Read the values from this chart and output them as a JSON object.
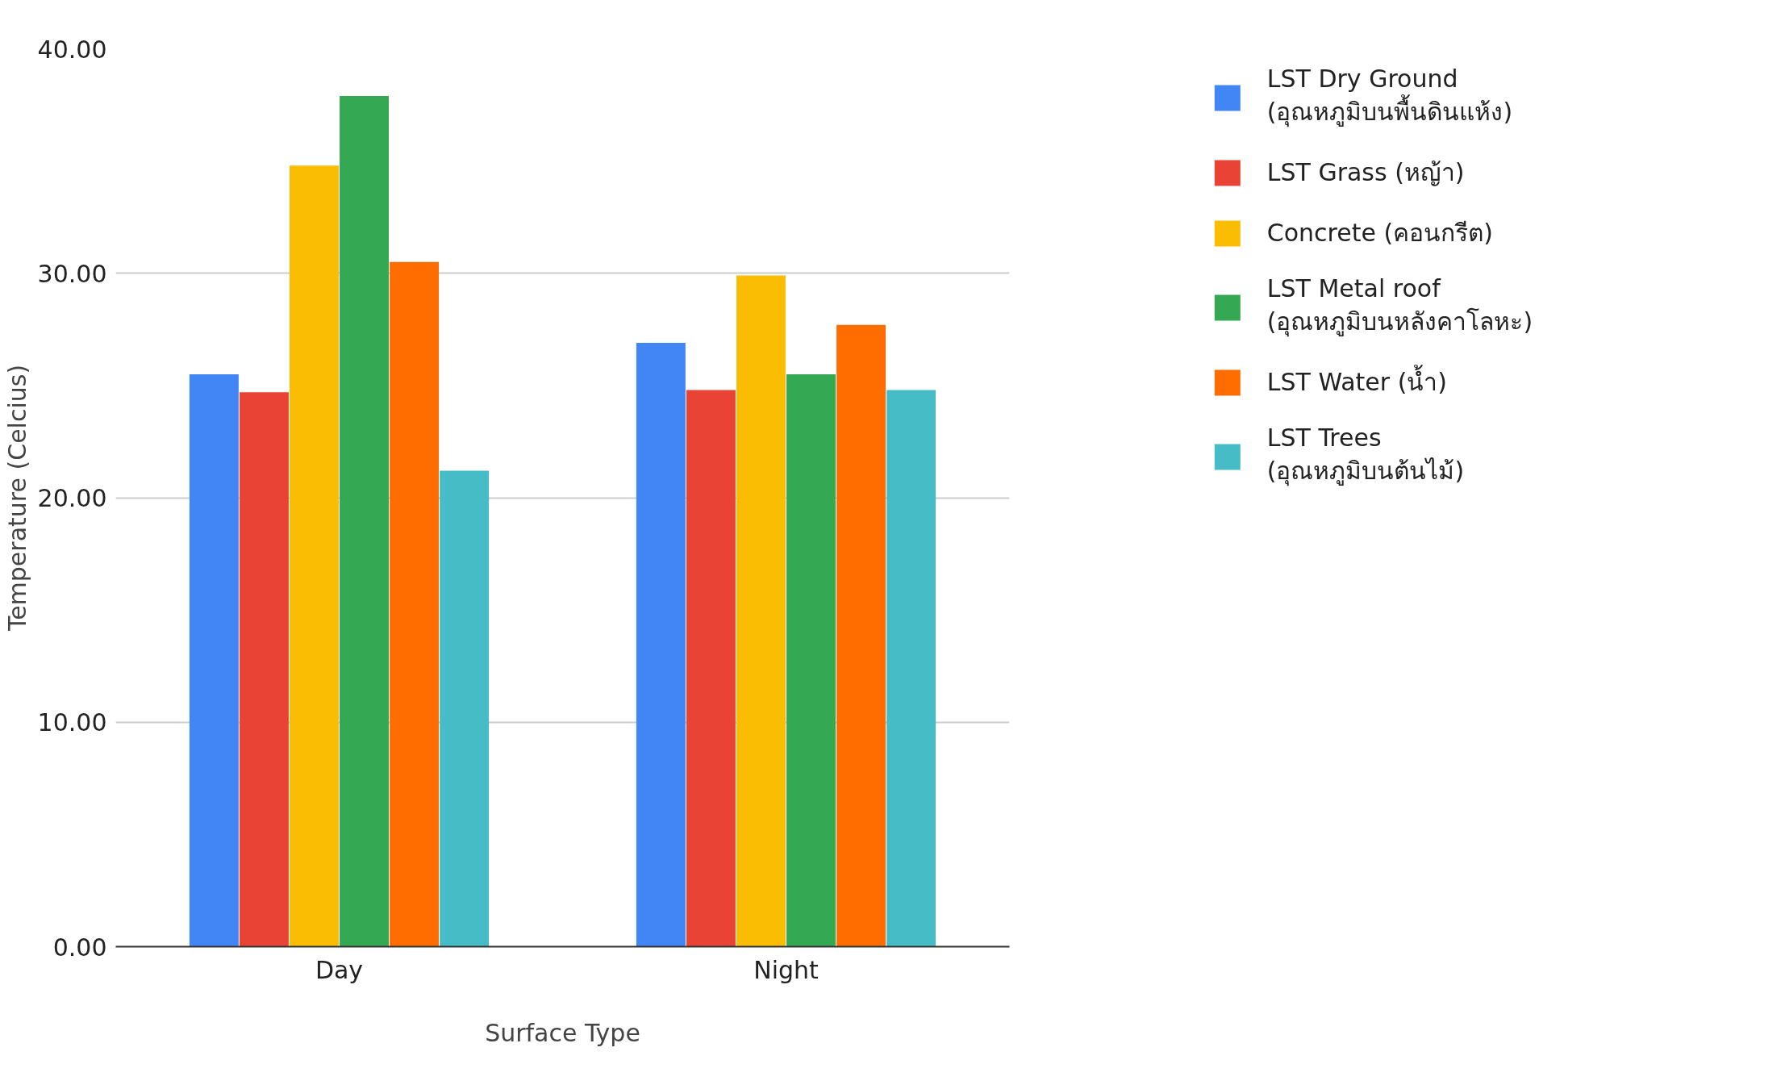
{
  "chart_data": {
    "type": "bar",
    "xlabel": "Surface Type",
    "ylabel": "Temperature (Celcius)",
    "categories": [
      "Day",
      "Night"
    ],
    "series": [
      {
        "name": "LST Dry Ground\n(อุณหภูมิบนพื้นดินแห้ง)",
        "color": "#4285f4",
        "values": [
          25.5,
          26.9
        ]
      },
      {
        "name": "LST Grass (หญ้า)",
        "color": "#e94335",
        "values": [
          24.7,
          24.8
        ]
      },
      {
        "name": "Concrete (คอนกรีต)",
        "color": "#fbbc04",
        "values": [
          34.8,
          29.9
        ]
      },
      {
        "name": "LST Metal roof\n(อุณหภูมิบนหลังคาโลหะ)",
        "color": "#34a853",
        "values": [
          37.9,
          25.5
        ]
      },
      {
        "name": "LST Water (น้ำ)",
        "color": "#ff6d01",
        "values": [
          30.5,
          27.7
        ]
      },
      {
        "name": "LST Trees\n(อุณหภูมิบนต้นไม้)",
        "color": "#46bdc6",
        "values": [
          21.2,
          24.8
        ]
      }
    ],
    "ylim": [
      0,
      40
    ],
    "yticks": [
      {
        "value": 0,
        "label": "0.00"
      },
      {
        "value": 10,
        "label": "10.00"
      },
      {
        "value": 20,
        "label": "20.00"
      },
      {
        "value": 30,
        "label": "30.00"
      },
      {
        "value": 40,
        "label": "40.00"
      }
    ],
    "grid": "y",
    "legend": "top right"
  }
}
